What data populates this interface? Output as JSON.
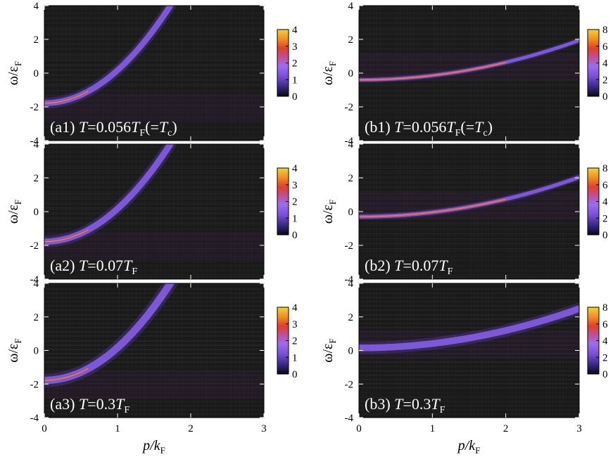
{
  "figure": {
    "xlabel": {
      "main": "p",
      "div": "/k",
      "sub": "F"
    },
    "ylabel": {
      "main": "ω/ε",
      "sub": "F"
    },
    "x_ticks": [
      "0",
      "1",
      "2",
      "3"
    ],
    "y_ticks": [
      "-4",
      "-2",
      "0",
      "2",
      "4"
    ]
  },
  "colors": {
    "background": "#1a1a1a",
    "colormap": [
      "#0b0617",
      "#3b2a8a",
      "#7a4fd9",
      "#9b6cf2",
      "#c64b8c",
      "#e0402a",
      "#f28b20",
      "#f2d23a"
    ]
  },
  "chart_data": [
    {
      "type": "heatmap",
      "id": "a1",
      "label": {
        "prefix": "(a1) ",
        "T": "T",
        "eq": "=0.056",
        "T2": "T",
        "sub": "F",
        "rest1": "(=",
        "T3": "T",
        "sub2": "c",
        "rest2": ")"
      },
      "curve": "a",
      "peak_max_region": 0.6,
      "width": 0.16,
      "xlim": [
        0,
        3
      ],
      "ylim": [
        -4,
        4
      ],
      "colorbar": {
        "range": [
          0,
          4
        ],
        "ticks": [
          "4",
          "3",
          "2",
          "1",
          "0"
        ]
      }
    },
    {
      "type": "heatmap",
      "id": "a2",
      "label": {
        "prefix": "(a2) ",
        "T": "T",
        "eq": "=0.07",
        "T2": "T",
        "sub": "F"
      },
      "curve": "a",
      "peak_max_region": 0.6,
      "width": 0.17,
      "xlim": [
        0,
        3
      ],
      "ylim": [
        -4,
        4
      ],
      "colorbar": {
        "range": [
          0,
          4
        ],
        "ticks": [
          "4",
          "3",
          "2",
          "1",
          "0"
        ]
      }
    },
    {
      "type": "heatmap",
      "id": "a3",
      "label": {
        "prefix": "(a3) ",
        "T": "T",
        "eq": "=0.3",
        "T2": "T",
        "sub": "F"
      },
      "curve": "a",
      "peak_max_region": 0.6,
      "width": 0.2,
      "xlim": [
        0,
        3
      ],
      "ylim": [
        -4,
        4
      ],
      "colorbar": {
        "range": [
          0,
          4
        ],
        "ticks": [
          "4",
          "3",
          "2",
          "1",
          "0"
        ]
      }
    },
    {
      "type": "heatmap",
      "id": "b1",
      "label": {
        "prefix": "(b1) ",
        "T": "T",
        "eq": "=0.056",
        "T2": "T",
        "sub": "F",
        "rest1": "(=",
        "T3": "T",
        "sub2": "c",
        "rest2": ")"
      },
      "curve": "b",
      "omega0": -0.4,
      "coef": 0.26,
      "width": 0.09,
      "xlim": [
        0,
        3
      ],
      "ylim": [
        -4,
        4
      ],
      "colorbar": {
        "range": [
          0,
          8
        ],
        "ticks": [
          "8",
          "6",
          "4",
          "2",
          "0"
        ]
      }
    },
    {
      "type": "heatmap",
      "id": "b2",
      "label": {
        "prefix": "(b2) ",
        "T": "T",
        "eq": "=0.07",
        "T2": "T",
        "sub": "F"
      },
      "curve": "b",
      "omega0": -0.3,
      "coef": 0.26,
      "width": 0.1,
      "xlim": [
        0,
        3
      ],
      "ylim": [
        -4,
        4
      ],
      "colorbar": {
        "range": [
          0,
          8
        ],
        "ticks": [
          "8",
          "6",
          "4",
          "2",
          "0"
        ]
      }
    },
    {
      "type": "heatmap",
      "id": "b3",
      "label": {
        "prefix": "(b3) ",
        "T": "T",
        "eq": "=0.3",
        "T2": "T",
        "sub": "F"
      },
      "curve": "b",
      "omega0": 0.15,
      "coef": 0.26,
      "width": 0.18,
      "xlim": [
        0,
        3
      ],
      "ylim": [
        -4,
        4
      ],
      "colorbar": {
        "range": [
          0,
          8
        ],
        "ticks": [
          "8",
          "6",
          "4",
          "2",
          "0"
        ]
      }
    }
  ]
}
